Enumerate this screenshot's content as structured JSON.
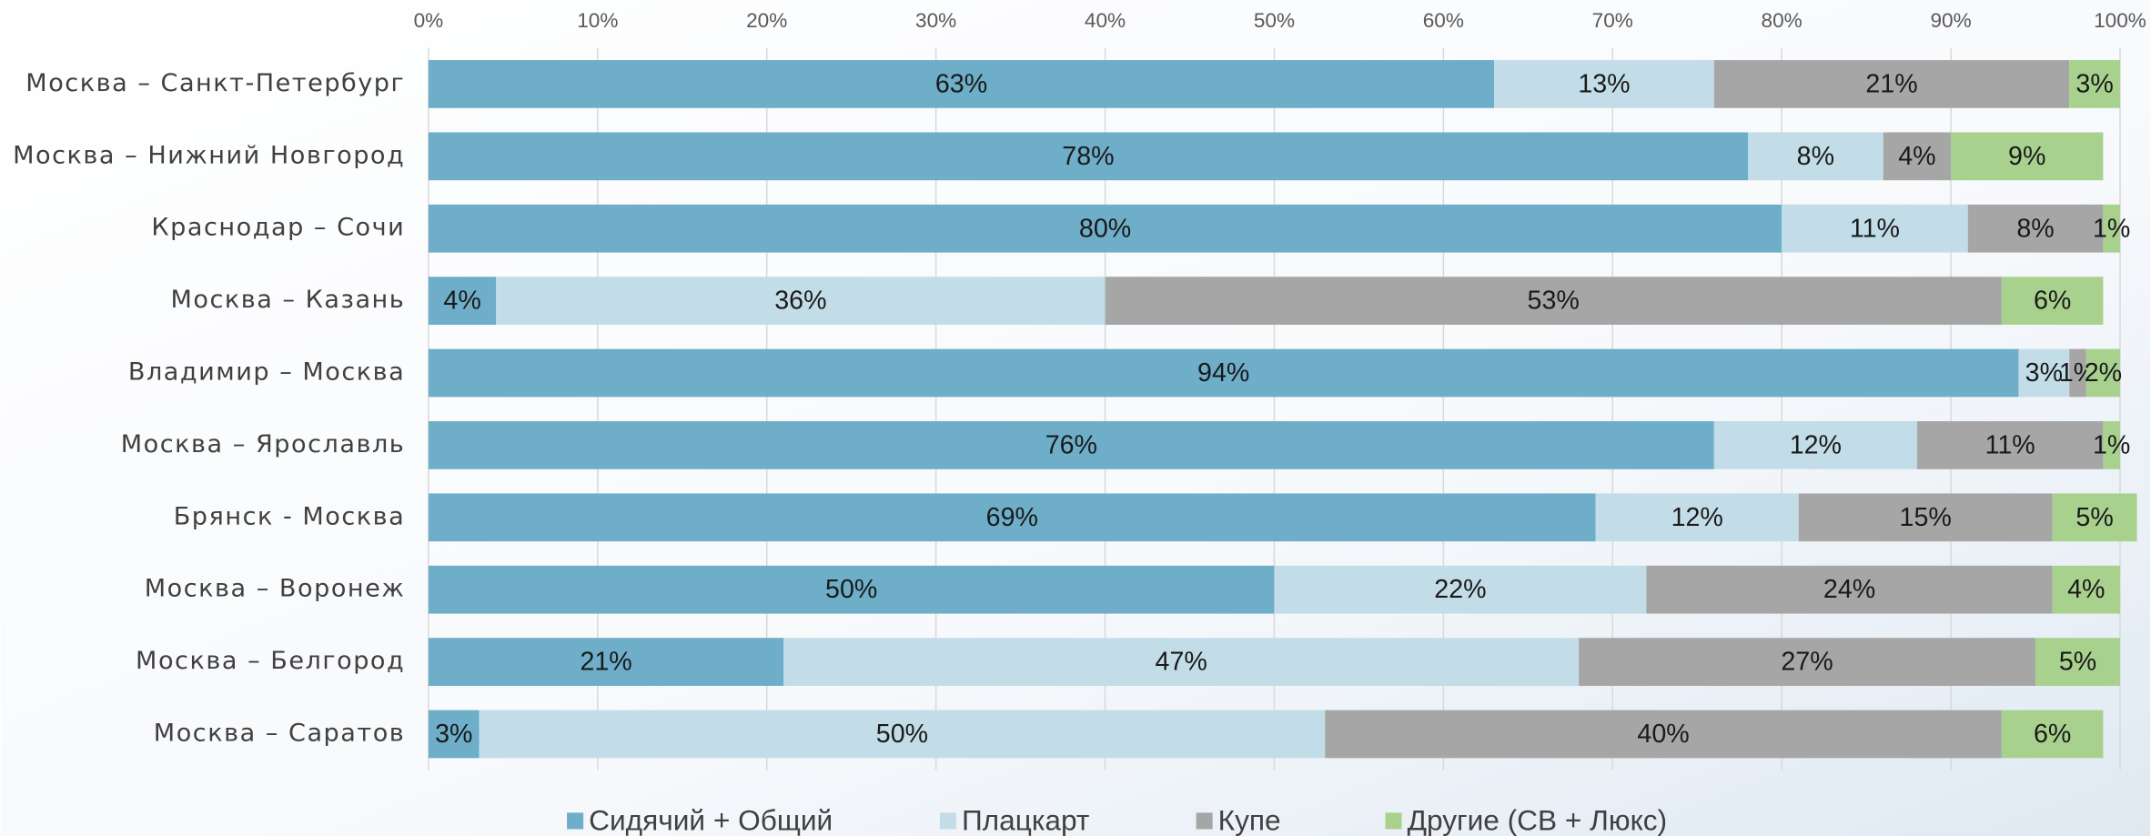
{
  "chart_data": {
    "type": "stacked-bar-horizontal",
    "categories": [
      "Москва – Санкт-Петербург",
      "Москва – Нижний Новгород",
      "Краснодар – Сочи",
      "Москва – Казань",
      "Владимир – Москва",
      "Москва – Ярославль",
      "Брянск - Москва",
      "Москва – Воронеж",
      "Москва – Белгород",
      "Москва – Саратов"
    ],
    "series": [
      {
        "name": "Сидячий + Общий",
        "color": "#6eaec9",
        "values": [
          63,
          78,
          80,
          4,
          94,
          76,
          69,
          50,
          21,
          3
        ],
        "value_labels": [
          "63%",
          "78%",
          "80%",
          "4%",
          "94%",
          "76%",
          "69%",
          "50%",
          "21%",
          "3%"
        ]
      },
      {
        "name": "Плацкарт",
        "color": "#c3dde8",
        "values": [
          13,
          8,
          11,
          36,
          3,
          12,
          12,
          22,
          47,
          50
        ],
        "value_labels": [
          "13%",
          "8%",
          "11%",
          "36%",
          "3%",
          "12%",
          "12%",
          "22%",
          "47%",
          "50%"
        ]
      },
      {
        "name": "Купе",
        "color": "#a6a6a6",
        "values": [
          21,
          4,
          8,
          53,
          1,
          11,
          15,
          24,
          27,
          40
        ],
        "value_labels": [
          "21%",
          "4%",
          "8%",
          "53%",
          "1%",
          "11%",
          "15%",
          "24%",
          "27%",
          "40%"
        ]
      },
      {
        "name": "Другие (СВ + Люкс)",
        "color": "#a9d18e",
        "values": [
          3,
          9,
          1,
          6,
          2,
          1,
          5,
          4,
          5,
          6
        ],
        "value_labels": [
          "3%",
          "9%",
          "1%",
          "6%",
          "2%",
          "1%",
          "5%",
          "4%",
          "5%",
          "6%"
        ]
      }
    ],
    "xlim": [
      0,
      100
    ],
    "xticks": [
      {
        "value": 0,
        "label": "0%"
      },
      {
        "value": 10,
        "label": "10%"
      },
      {
        "value": 20,
        "label": "20%"
      },
      {
        "value": 30,
        "label": "30%"
      },
      {
        "value": 40,
        "label": "40%"
      },
      {
        "value": 50,
        "label": "50%"
      },
      {
        "value": 60,
        "label": "60%"
      },
      {
        "value": 70,
        "label": "70%"
      },
      {
        "value": 80,
        "label": "80%"
      },
      {
        "value": 90,
        "label": "90%"
      },
      {
        "value": 100,
        "label": "100%"
      }
    ],
    "grid": true,
    "legend": "bottom"
  }
}
